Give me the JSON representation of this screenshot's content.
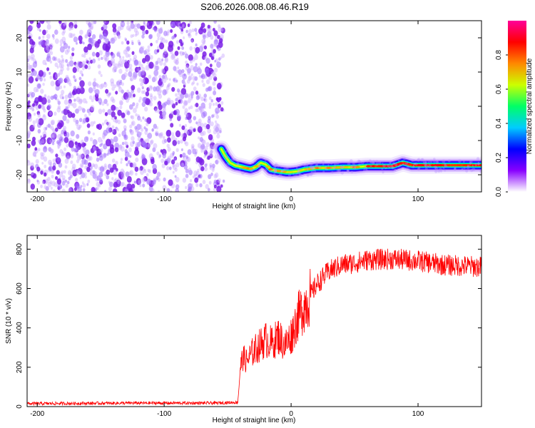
{
  "title": "S206.2026.008.08.46.R19",
  "chart_data": [
    {
      "type": "heatmap",
      "title": "S206.2026.008.08.46.R19",
      "xlabel": "Height of straight line (km)",
      "ylabel": "Frequency (Hz)",
      "xlim": [
        -208,
        150
      ],
      "ylim": [
        -25,
        25
      ],
      "xticks": [
        -200,
        -100,
        0,
        100
      ],
      "yticks": [
        -20,
        -10,
        0,
        10,
        20
      ],
      "noise_region_xmax": -53,
      "ridge": {
        "x": [
          -55,
          -52,
          -48,
          -44,
          -40,
          -36,
          -32,
          -28,
          -24,
          -20,
          -16,
          -12,
          -8,
          -4,
          0,
          5,
          10,
          20,
          30,
          40,
          50,
          60,
          70,
          80,
          88,
          95,
          110,
          130,
          150
        ],
        "y": [
          -12.5,
          -14.5,
          -16.5,
          -17.3,
          -17.6,
          -18.0,
          -18.3,
          -17.8,
          -16.5,
          -17.0,
          -18.5,
          -18.8,
          -19.0,
          -19.2,
          -19.2,
          -19.0,
          -18.5,
          -18.0,
          -18.0,
          -17.8,
          -17.8,
          -17.5,
          -17.5,
          -17.5,
          -16.5,
          -17.2,
          -17.2,
          -17.2,
          -17.2
        ]
      },
      "colorbar": {
        "label": "Normalized spectral amplitude",
        "range": [
          0,
          1
        ],
        "ticks": [
          0.0,
          0.2,
          0.4,
          0.6,
          0.8
        ],
        "tick_labels": [
          "0.0",
          "0.2",
          "0.4",
          "0.6",
          "0.8"
        ],
        "colormap": [
          "#ffffff",
          "#8800ff",
          "#0000ff",
          "#00ccff",
          "#00ff66",
          "#ccff00",
          "#ff8800",
          "#ff0000",
          "#ff0099"
        ]
      }
    },
    {
      "type": "line",
      "xlabel": "Height of straight line (km)",
      "ylabel": "SNR (10 * v/v)",
      "xlim": [
        -208,
        150
      ],
      "ylim": [
        0,
        870
      ],
      "xticks": [
        -200,
        -100,
        0,
        100
      ],
      "yticks": [
        0,
        200,
        400,
        600,
        800
      ],
      "series": [
        {
          "name": "SNR",
          "color": "#ff0000",
          "x": [
            -208,
            -120,
            -60,
            -42,
            -40,
            -38,
            -35,
            -30,
            -25,
            -20,
            -15,
            -10,
            -5,
            0,
            5,
            10,
            15,
            20,
            30,
            40,
            50,
            60,
            80,
            100,
            120,
            150
          ],
          "y": [
            15,
            18,
            18,
            22,
            200,
            250,
            230,
            280,
            310,
            340,
            320,
            360,
            310,
            360,
            450,
            510,
            560,
            620,
            690,
            720,
            730,
            745,
            750,
            740,
            720,
            710
          ]
        }
      ]
    }
  ],
  "colors": {
    "axis": "#000000",
    "line": "#ff0000",
    "noise": "#8800ff"
  }
}
